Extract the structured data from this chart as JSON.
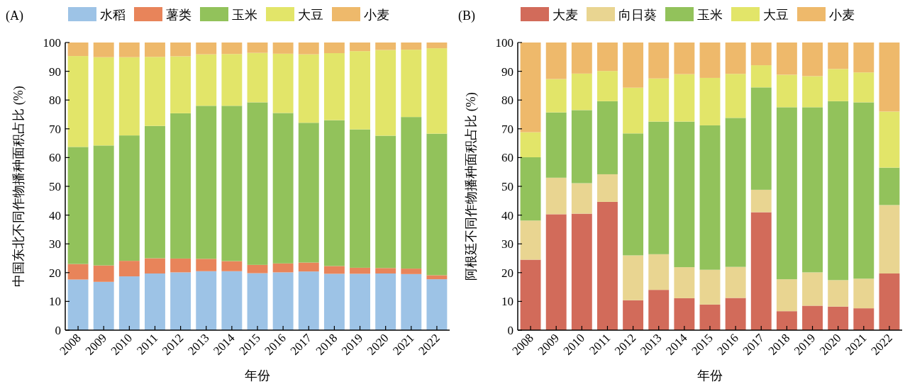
{
  "chart_data": [
    {
      "type": "bar",
      "title": "(A)",
      "xlabel": "年份",
      "ylabel": "中国东北不同作物播种面积占比 (%)",
      "categories": [
        "2008",
        "2009",
        "2010",
        "2011",
        "2012",
        "2013",
        "2014",
        "2015",
        "2016",
        "2017",
        "2018",
        "2019",
        "2020",
        "2021",
        "2022"
      ],
      "stacked": true,
      "legend": "top",
      "ylim": [
        0,
        100
      ],
      "yticks": [
        0,
        10,
        20,
        30,
        40,
        50,
        60,
        70,
        80,
        90,
        100
      ],
      "series": [
        {
          "name": "水稻",
          "color": "#9dc3e6",
          "values": [
            17.6,
            16.8,
            18.7,
            19.7,
            20.1,
            20.5,
            20.5,
            19.8,
            20.1,
            20.4,
            19.6,
            19.6,
            19.7,
            19.5,
            17.7
          ]
        },
        {
          "name": "薯类",
          "color": "#e8845a",
          "values": [
            5.4,
            5.7,
            5.4,
            5.3,
            4.8,
            4.3,
            3.5,
            2.9,
            3.1,
            3.1,
            2.7,
            2.1,
            1.9,
            1.9,
            1.4
          ]
        },
        {
          "name": "玉米",
          "color": "#92c25b",
          "values": [
            40.7,
            41.7,
            43.6,
            46.0,
            50.5,
            53.2,
            54.0,
            56.5,
            52.3,
            48.6,
            50.7,
            48.1,
            46.0,
            52.7,
            49.2
          ]
        },
        {
          "name": "大豆",
          "color": "#e2e569",
          "values": [
            31.6,
            30.7,
            27.2,
            24.0,
            19.8,
            17.9,
            18.0,
            17.2,
            20.6,
            23.8,
            23.3,
            27.2,
            29.8,
            23.4,
            29.7
          ]
        },
        {
          "name": "小麦",
          "color": "#eeb96b",
          "values": [
            4.7,
            5.1,
            5.1,
            5.0,
            4.8,
            4.1,
            4.0,
            3.6,
            3.9,
            4.1,
            3.7,
            3.0,
            2.6,
            2.5,
            2.0
          ]
        }
      ]
    },
    {
      "type": "bar",
      "title": "(B)",
      "xlabel": "年份",
      "ylabel": "阿根廷不同作物播种面积占比 (%)",
      "categories": [
        "2008",
        "2009",
        "2010",
        "2011",
        "2012",
        "2013",
        "2014",
        "2015",
        "2016",
        "2017",
        "2018",
        "2019",
        "2020",
        "2021",
        "2022"
      ],
      "stacked": true,
      "legend": "top",
      "ylim": [
        0,
        100
      ],
      "yticks": [
        0,
        10,
        20,
        30,
        40,
        50,
        60,
        70,
        80,
        90,
        100
      ],
      "series": [
        {
          "name": "大麦",
          "color": "#d26b5a",
          "values": [
            24.5,
            40.3,
            40.5,
            44.6,
            10.4,
            14.0,
            11.1,
            8.9,
            11.2,
            41.0,
            6.6,
            8.5,
            8.2,
            7.6,
            19.7
          ]
        },
        {
          "name": "向日葵",
          "color": "#e9d591",
          "values": [
            13.6,
            12.7,
            10.6,
            9.6,
            15.6,
            12.4,
            10.8,
            12.1,
            10.8,
            7.8,
            11.1,
            11.6,
            9.2,
            10.3,
            23.8
          ]
        },
        {
          "name": "玉米",
          "color": "#92c25b",
          "values": [
            22.0,
            22.7,
            25.4,
            25.4,
            42.4,
            46.1,
            50.6,
            50.2,
            51.8,
            35.6,
            59.8,
            57.4,
            62.2,
            61.3,
            13.0
          ]
        },
        {
          "name": "大豆",
          "color": "#e2e569",
          "values": [
            8.7,
            11.6,
            12.7,
            10.5,
            15.9,
            15.0,
            16.5,
            16.5,
            15.3,
            7.7,
            11.3,
            10.8,
            11.2,
            10.4,
            19.5
          ]
        },
        {
          "name": "小麦",
          "color": "#eeb96b",
          "values": [
            31.2,
            12.7,
            10.8,
            9.9,
            15.7,
            12.5,
            11.0,
            12.3,
            10.9,
            7.9,
            11.2,
            11.7,
            9.2,
            10.4,
            24.0
          ]
        }
      ]
    }
  ]
}
